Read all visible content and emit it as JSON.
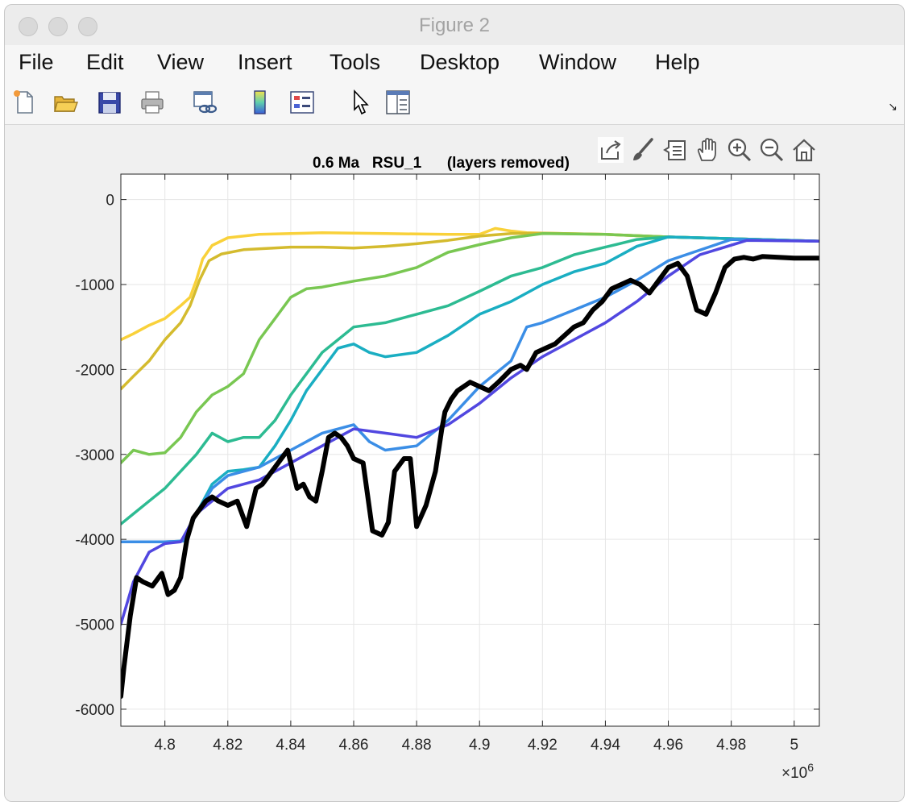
{
  "window": {
    "title": "Figure 2"
  },
  "menu": [
    "File",
    "Edit",
    "View",
    "Insert",
    "Tools",
    "Desktop",
    "Window",
    "Help"
  ],
  "toolbar_icons": [
    "new-figure-icon",
    "open-file-icon",
    "save-icon",
    "print-icon",
    "link-plot-icon",
    "colorbar-icon",
    "legend-icon",
    "edit-plot-icon",
    "property-inspector-icon"
  ],
  "axes_toolbar_icons": [
    "export-icon",
    "brush-icon",
    "data-tips-icon",
    "pan-icon",
    "zoom-in-icon",
    "zoom-out-icon",
    "home-icon"
  ],
  "chart_data": {
    "type": "line",
    "title": "0.6 Ma   RSU_1      (layers removed)",
    "xlabel": "",
    "ylabel": "",
    "xlim": [
      4786000.0,
      5008000.0
    ],
    "ylim": [
      -6200,
      300
    ],
    "x_exponent_label": "×10",
    "x_exponent": "6",
    "x_ticks": [
      4800000.0,
      4820000.0,
      4840000.0,
      4860000.0,
      4880000.0,
      4900000.0,
      4920000.0,
      4940000.0,
      4960000.0,
      4980000.0,
      5000000.0
    ],
    "x_tick_labels": [
      "4.8",
      "4.82",
      "4.84",
      "4.86",
      "4.88",
      "4.9",
      "4.92",
      "4.94",
      "4.96",
      "4.98",
      "5"
    ],
    "y_ticks": [
      0,
      -1000,
      -2000,
      -3000,
      -4000,
      -5000,
      -6000
    ],
    "y_tick_labels": [
      "0",
      "-1000",
      "-2000",
      "-3000",
      "-4000",
      "-5000",
      "-6000"
    ],
    "grid": true,
    "series": [
      {
        "color": "#f9d13a",
        "width": 3.5,
        "x": [
          4.786,
          4.79,
          4.795,
          4.8,
          4.805,
          4.808,
          4.81,
          4.812,
          4.815,
          4.82,
          4.83,
          4.84,
          4.85,
          4.86,
          4.87,
          4.88,
          4.89,
          4.9,
          4.905,
          4.91,
          4.915,
          4.92,
          4.94,
          4.96,
          4.98,
          5.008
        ],
        "y": [
          -1650,
          -1580,
          -1480,
          -1400,
          -1250,
          -1150,
          -950,
          -700,
          -540,
          -450,
          -410,
          -400,
          -390,
          -395,
          -400,
          -405,
          -410,
          -410,
          -340,
          -370,
          -390,
          -395,
          -410,
          -440,
          -460,
          -490
        ]
      },
      {
        "color": "#d4bb2e",
        "width": 3.5,
        "x": [
          4.786,
          4.79,
          4.795,
          4.8,
          4.805,
          4.808,
          4.811,
          4.814,
          4.818,
          4.825,
          4.84,
          4.85,
          4.86,
          4.87,
          4.88,
          4.89,
          4.9,
          4.91,
          4.92,
          4.94,
          4.96,
          4.98,
          5.008
        ],
        "y": [
          -2230,
          -2080,
          -1900,
          -1650,
          -1450,
          -1250,
          -950,
          -720,
          -640,
          -590,
          -560,
          -560,
          -570,
          -550,
          -520,
          -480,
          -430,
          -400,
          -395,
          -410,
          -440,
          -460,
          -490
        ]
      },
      {
        "color": "#79c752",
        "width": 3.5,
        "x": [
          4.786,
          4.79,
          4.795,
          4.8,
          4.805,
          4.81,
          4.815,
          4.82,
          4.825,
          4.83,
          4.835,
          4.84,
          4.845,
          4.85,
          4.86,
          4.87,
          4.88,
          4.89,
          4.9,
          4.91,
          4.92,
          4.94,
          4.96,
          4.98,
          5.008
        ],
        "y": [
          -3100,
          -2950,
          -3000,
          -2980,
          -2800,
          -2500,
          -2300,
          -2200,
          -2050,
          -1650,
          -1400,
          -1150,
          -1050,
          -1030,
          -960,
          -900,
          -800,
          -620,
          -530,
          -450,
          -400,
          -410,
          -440,
          -460,
          -490
        ]
      },
      {
        "color": "#2dbb92",
        "width": 3.5,
        "x": [
          4.786,
          4.79,
          4.795,
          4.8,
          4.805,
          4.81,
          4.815,
          4.82,
          4.825,
          4.83,
          4.835,
          4.84,
          4.845,
          4.85,
          4.855,
          4.86,
          4.87,
          4.88,
          4.89,
          4.9,
          4.91,
          4.92,
          4.93,
          4.94,
          4.95,
          4.96,
          4.98,
          5.008
        ],
        "y": [
          -3820,
          -3700,
          -3550,
          -3400,
          -3200,
          -3000,
          -2750,
          -2850,
          -2800,
          -2800,
          -2600,
          -2300,
          -2050,
          -1800,
          -1650,
          -1500,
          -1450,
          -1350,
          -1250,
          -1080,
          -900,
          -800,
          -650,
          -560,
          -470,
          -440,
          -460,
          -490
        ]
      },
      {
        "color": "#1aaec2",
        "width": 3.5,
        "x": [
          4.786,
          4.79,
          4.8,
          4.806,
          4.81,
          4.815,
          4.82,
          4.825,
          4.83,
          4.835,
          4.84,
          4.845,
          4.85,
          4.855,
          4.86,
          4.865,
          4.87,
          4.88,
          4.89,
          4.9,
          4.91,
          4.92,
          4.93,
          4.94,
          4.95,
          4.96,
          4.98,
          5.008
        ],
        "y": [
          -4030,
          -4030,
          -4030,
          -4020,
          -3700,
          -3350,
          -3200,
          -3180,
          -3150,
          -2900,
          -2600,
          -2250,
          -2000,
          -1750,
          -1700,
          -1800,
          -1850,
          -1800,
          -1600,
          -1350,
          -1200,
          -1000,
          -850,
          -750,
          -550,
          -440,
          -460,
          -490
        ]
      },
      {
        "color": "#3b8ee6",
        "width": 3.5,
        "x": [
          4.786,
          4.79,
          4.8,
          4.806,
          4.81,
          4.815,
          4.82,
          4.83,
          4.84,
          4.85,
          4.86,
          4.865,
          4.87,
          4.88,
          4.89,
          4.9,
          4.91,
          4.915,
          4.92,
          4.93,
          4.94,
          4.95,
          4.96,
          4.98,
          5.008
        ],
        "y": [
          -4030,
          -4030,
          -4030,
          -4020,
          -3700,
          -3400,
          -3250,
          -3150,
          -2950,
          -2750,
          -2650,
          -2850,
          -2950,
          -2900,
          -2600,
          -2200,
          -1900,
          -1500,
          -1450,
          -1300,
          -1150,
          -950,
          -720,
          -470,
          -490
        ]
      },
      {
        "color": "#5147e0",
        "width": 3.5,
        "x": [
          4.786,
          4.79,
          4.795,
          4.8,
          4.805,
          4.81,
          4.82,
          4.83,
          4.84,
          4.85,
          4.86,
          4.87,
          4.88,
          4.89,
          4.9,
          4.91,
          4.92,
          4.93,
          4.94,
          4.95,
          4.96,
          4.97,
          4.985,
          5.008
        ],
        "y": [
          -5000,
          -4500,
          -4150,
          -4050,
          -4030,
          -3700,
          -3400,
          -3300,
          -3100,
          -2900,
          -2700,
          -2750,
          -2800,
          -2650,
          -2400,
          -2100,
          -1850,
          -1650,
          -1450,
          -1200,
          -900,
          -650,
          -480,
          -490
        ]
      },
      {
        "color": "#000000",
        "width": 6,
        "x": [
          4.786,
          4.787,
          4.789,
          4.791,
          4.793,
          4.796,
          4.799,
          4.801,
          4.803,
          4.805,
          4.807,
          4.809,
          4.811,
          4.813,
          4.815,
          4.817,
          4.82,
          4.823,
          4.826,
          4.829,
          4.831,
          4.833,
          4.836,
          4.839,
          4.842,
          4.844,
          4.846,
          4.848,
          4.85,
          4.852,
          4.854,
          4.856,
          4.858,
          4.86,
          4.863,
          4.866,
          4.869,
          4.871,
          4.873,
          4.876,
          4.878,
          4.88,
          4.883,
          4.886,
          4.888,
          4.889,
          4.891,
          4.893,
          4.895,
          4.897,
          4.9,
          4.903,
          4.906,
          4.91,
          4.913,
          4.915,
          4.918,
          4.921,
          4.924,
          4.927,
          4.93,
          4.933,
          4.936,
          4.939,
          4.942,
          4.945,
          4.948,
          4.951,
          4.954,
          4.957,
          4.96,
          4.963,
          4.966,
          4.969,
          4.972,
          4.975,
          4.978,
          4.981,
          4.984,
          4.987,
          4.99,
          4.995,
          5.0,
          5.008
        ],
        "y": [
          -5850,
          -5500,
          -4900,
          -4450,
          -4500,
          -4550,
          -4400,
          -4650,
          -4600,
          -4450,
          -4000,
          -3750,
          -3650,
          -3550,
          -3500,
          -3550,
          -3600,
          -3550,
          -3850,
          -3400,
          -3350,
          -3250,
          -3100,
          -2950,
          -3400,
          -3350,
          -3500,
          -3550,
          -3200,
          -2800,
          -2750,
          -2800,
          -2900,
          -3050,
          -3100,
          -3900,
          -3950,
          -3800,
          -3200,
          -3050,
          -3050,
          -3850,
          -3600,
          -3200,
          -2700,
          -2500,
          -2350,
          -2250,
          -2200,
          -2150,
          -2200,
          -2250,
          -2150,
          -2000,
          -1950,
          -2000,
          -1800,
          -1750,
          -1700,
          -1600,
          -1500,
          -1450,
          -1300,
          -1200,
          -1050,
          -1000,
          -950,
          -1000,
          -1100,
          -950,
          -800,
          -750,
          -900,
          -1300,
          -1350,
          -1100,
          -800,
          -700,
          -680,
          -700,
          -670,
          -680,
          -690,
          -690
        ]
      }
    ]
  }
}
